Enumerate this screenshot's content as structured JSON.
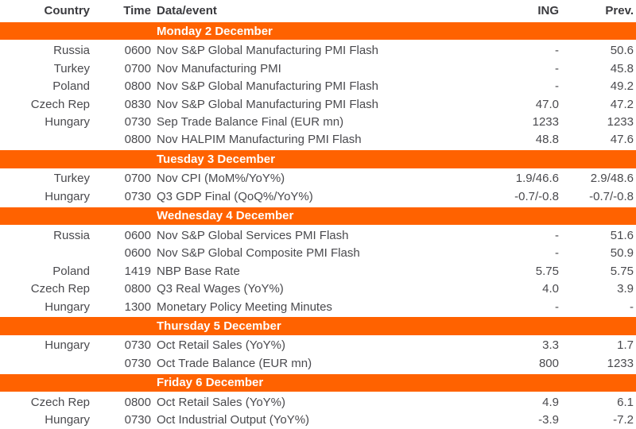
{
  "colors": {
    "accent": "#FF6200",
    "band_text": "#FFFFFF",
    "body_text": "#4A4A4E",
    "header_text": "#3A3A3E",
    "background": "#FFFFFF"
  },
  "table": {
    "columns": [
      "Country",
      "Time",
      "Data/event",
      "ING",
      "Prev."
    ],
    "sections": [
      {
        "day": "Monday 2 December",
        "rows": [
          {
            "country": "Russia",
            "time": "0600",
            "event": "Nov S&P Global Manufacturing PMI Flash",
            "ing": "-",
            "prev": "50.6"
          },
          {
            "country": "Turkey",
            "time": "0700",
            "event": "Nov Manufacturing PMI",
            "ing": "-",
            "prev": "45.8"
          },
          {
            "country": "Poland",
            "time": "0800",
            "event": "Nov S&P Global Manufacturing PMI Flash",
            "ing": "-",
            "prev": "49.2"
          },
          {
            "country": "Czech Rep",
            "time": "0830",
            "event": "Nov S&P Global Manufacturing PMI Flash",
            "ing": "47.0",
            "prev": "47.2"
          },
          {
            "country": "Hungary",
            "time": "0730",
            "event": "Sep Trade Balance Final (EUR mn)",
            "ing": "1233",
            "prev": "1233"
          },
          {
            "country": "",
            "time": "0800",
            "event": "Nov HALPIM Manufacturing PMI Flash",
            "ing": "48.8",
            "prev": "47.6"
          }
        ]
      },
      {
        "day": "Tuesday 3 December",
        "rows": [
          {
            "country": "Turkey",
            "time": "0700",
            "event": "Nov CPI (MoM%/YoY%)",
            "ing": "1.9/46.6",
            "prev": "2.9/48.6"
          },
          {
            "country": "Hungary",
            "time": "0730",
            "event": "Q3 GDP Final (QoQ%/YoY%)",
            "ing": "-0.7/-0.8",
            "prev": "-0.7/-0.8"
          }
        ]
      },
      {
        "day": "Wednesday 4 December",
        "rows": [
          {
            "country": "Russia",
            "time": "0600",
            "event": "Nov S&P Global Services PMI Flash",
            "ing": "-",
            "prev": "51.6"
          },
          {
            "country": "",
            "time": "0600",
            "event": "Nov S&P Global Composite PMI Flash",
            "ing": "-",
            "prev": "50.9"
          },
          {
            "country": "Poland",
            "time": "1419",
            "event": "NBP Base Rate",
            "ing": "5.75",
            "prev": "5.75"
          },
          {
            "country": "Czech Rep",
            "time": "0800",
            "event": "Q3 Real Wages (YoY%)",
            "ing": "4.0",
            "prev": "3.9"
          },
          {
            "country": "Hungary",
            "time": "1300",
            "event": "Monetary Policy Meeting Minutes",
            "ing": "-",
            "prev": "-"
          }
        ]
      },
      {
        "day": "Thursday 5 December",
        "rows": [
          {
            "country": "Hungary",
            "time": "0730",
            "event": "Oct Retail Sales (YoY%)",
            "ing": "3.3",
            "prev": "1.7"
          },
          {
            "country": "",
            "time": "0730",
            "event": "Oct Trade Balance (EUR mn)",
            "ing": "800",
            "prev": "1233"
          }
        ]
      },
      {
        "day": "Friday 6 December",
        "rows": [
          {
            "country": "Czech Rep",
            "time": "0800",
            "event": "Oct Retail Sales (YoY%)",
            "ing": "4.9",
            "prev": "6.1"
          },
          {
            "country": "Hungary",
            "time": "0730",
            "event": "Oct Industrial Output (YoY%)",
            "ing": "-3.9",
            "prev": "-7.2"
          }
        ]
      }
    ]
  }
}
